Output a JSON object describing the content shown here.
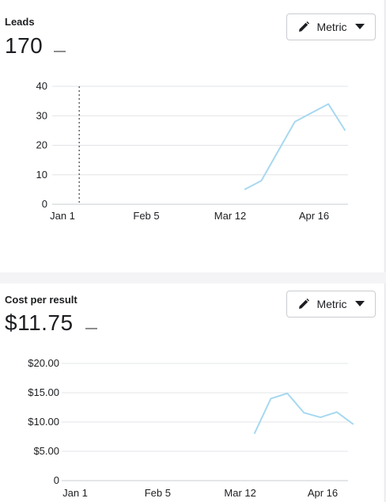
{
  "cards": [
    {
      "title": "Leads",
      "value": "170",
      "dash": "—",
      "metric_button": {
        "label": "Metric",
        "icon": "pencil-icon",
        "caret": "caret-down-icon"
      },
      "chart_data": {
        "type": "line",
        "x_ticks": [
          "Jan 1",
          "Feb 5",
          "Mar 12",
          "Apr 16"
        ],
        "y_ticks": [
          "0",
          "10",
          "20",
          "30",
          "40"
        ],
        "ylim": [
          0,
          40
        ],
        "series": [
          {
            "color": "#a7d8f0",
            "points": [
              {
                "x": "Mar 18",
                "y": 5
              },
              {
                "x": "Mar 25",
                "y": 8
              },
              {
                "x": "Apr 1",
                "y": 18
              },
              {
                "x": "Apr 8",
                "y": 28
              },
              {
                "x": "Apr 15",
                "y": 31
              },
              {
                "x": "Apr 22",
                "y": 34
              },
              {
                "x": "Apr 29",
                "y": 25
              }
            ]
          }
        ],
        "marker": {
          "x": "Jan 8",
          "style": "dotted"
        }
      }
    },
    {
      "title": "Cost per result",
      "value": "$11.75",
      "dash": "—",
      "metric_button": {
        "label": "Metric",
        "icon": "pencil-icon",
        "caret": "caret-down-icon"
      },
      "chart_data": {
        "type": "line",
        "x_ticks": [
          "Jan 1",
          "Feb 5",
          "Mar 12",
          "Apr 16"
        ],
        "y_ticks": [
          "0",
          "$5.00",
          "$10.00",
          "$15.00",
          "$20.00"
        ],
        "ylim": [
          0,
          20
        ],
        "series": [
          {
            "color": "#a7d8f0",
            "points": [
              {
                "x": "Mar 18",
                "y": 8.0
              },
              {
                "x": "Mar 25",
                "y": 14.0
              },
              {
                "x": "Apr 1",
                "y": 14.9
              },
              {
                "x": "Apr 8",
                "y": 11.6
              },
              {
                "x": "Apr 15",
                "y": 10.8
              },
              {
                "x": "Apr 22",
                "y": 11.7
              },
              {
                "x": "Apr 29",
                "y": 9.6
              }
            ]
          }
        ]
      }
    }
  ]
}
